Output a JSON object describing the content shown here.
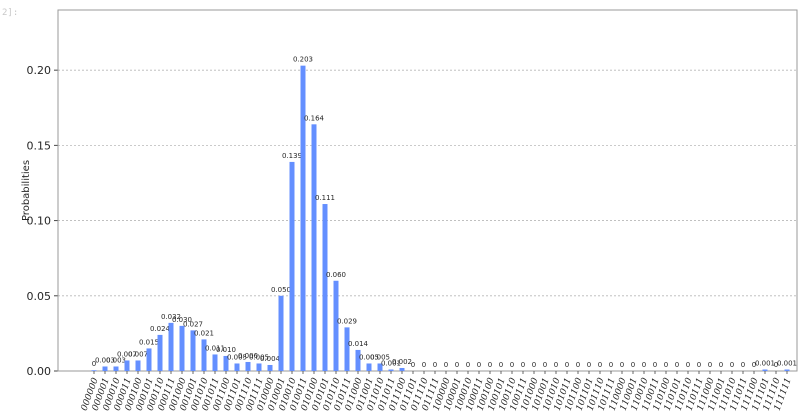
{
  "cell": {
    "prompt": "2]:"
  },
  "chart_data": {
    "type": "bar",
    "title": "",
    "xlabel": "",
    "ylabel": "Probabilities",
    "ylim": [
      0,
      0.24
    ],
    "yticks": [
      "0.00",
      "0.05",
      "0.10",
      "0.15",
      "0.20"
    ],
    "grid": "horizontal dashed",
    "bar_color": "#648fff",
    "categories": [
      "000000",
      "000001",
      "000010",
      "000011",
      "000100",
      "000101",
      "000110",
      "000111",
      "001000",
      "001001",
      "001010",
      "001011",
      "001100",
      "001101",
      "001110",
      "001111",
      "010000",
      "010001",
      "010010",
      "010011",
      "010100",
      "010101",
      "010110",
      "010111",
      "011000",
      "011001",
      "011010",
      "011011",
      "011100",
      "011101",
      "011110",
      "011111",
      "100000",
      "100001",
      "100010",
      "100011",
      "100100",
      "100101",
      "100110",
      "100111",
      "101000",
      "101001",
      "101010",
      "101011",
      "101100",
      "101101",
      "101110",
      "101111",
      "110000",
      "110001",
      "110010",
      "110011",
      "110100",
      "110101",
      "110110",
      "110111",
      "111000",
      "111001",
      "111010",
      "111011",
      "111100",
      "111101",
      "111110",
      "111111"
    ],
    "values": [
      0.0005,
      0.003,
      0.003,
      0.007,
      0.007,
      0.015,
      0.024,
      0.032,
      0.03,
      0.027,
      0.021,
      0.011,
      0.01,
      0.005,
      0.006,
      0.005,
      0.004,
      0.05,
      0.139,
      0.203,
      0.164,
      0.111,
      0.06,
      0.029,
      0.014,
      0.005,
      0.005,
      0.001,
      0.002,
      0,
      0,
      0,
      0,
      0,
      0,
      0,
      0,
      0,
      0,
      0,
      0,
      0,
      0,
      0,
      0,
      0,
      0,
      0,
      0,
      0,
      0,
      0,
      0,
      0,
      0,
      0,
      0,
      0,
      0,
      0,
      0,
      0.001,
      0,
      0.001
    ],
    "labels": [
      "0",
      "0.003",
      "0.003",
      "0.007",
      "0.007",
      "0.015",
      "0.024",
      "0.032",
      "0.030",
      "0.027",
      "0.021",
      "0.011",
      "0.010",
      "0.005",
      "0.006",
      "0.005",
      "0.004",
      "0.050",
      "0.139",
      "0.203",
      "0.164",
      "0.111",
      "0.060",
      "0.029",
      "0.014",
      "0.005",
      "0.005",
      "0.001",
      "0.002",
      "0",
      "0",
      "0",
      "0",
      "0",
      "0",
      "0",
      "0",
      "0",
      "0",
      "0",
      "0",
      "0",
      "0",
      "0",
      "0",
      "0",
      "0",
      "0",
      "0",
      "0",
      "0",
      "0",
      "0",
      "0",
      "0",
      "0",
      "0",
      "0",
      "0",
      "0",
      "0",
      "0.001",
      "0",
      "0.001"
    ]
  }
}
